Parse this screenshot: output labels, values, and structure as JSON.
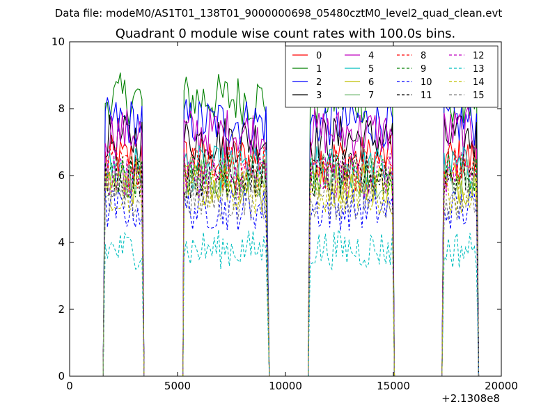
{
  "suptitle": "Data file: modeM0/AS1T01_138T01_9000000698_05480cztM0_level2_quad_clean.evt",
  "chart_data": {
    "type": "line",
    "title": "Quadrant 0 module wise count rates with 100.0s bins.",
    "xlabel": "",
    "ylabel": "",
    "xlim": [
      0,
      20000
    ],
    "ylim": [
      0,
      10
    ],
    "x_offset_label": "+2.1308e8",
    "xticks": [
      0,
      5000,
      10000,
      15000,
      20000
    ],
    "xtick_labels": [
      "0",
      "5000",
      "10000",
      "15000",
      "20000"
    ],
    "yticks": [
      0,
      2,
      4,
      6,
      8,
      10
    ],
    "ytick_labels": [
      "0",
      "2",
      "4",
      "6",
      "8",
      "10"
    ],
    "grid": false,
    "legend_position": "top-right",
    "legend_columns": 4,
    "segments": [
      {
        "start": 1650,
        "end": 3350
      },
      {
        "start": 5300,
        "end": 9150
      },
      {
        "start": 11150,
        "end": 14950
      },
      {
        "start": 17350,
        "end": 18850
      }
    ],
    "bin_seconds": 100,
    "series": [
      {
        "name": "0",
        "color": "#ff0000",
        "dash": "solid",
        "mean": 6.5
      },
      {
        "name": "1",
        "color": "#008000",
        "dash": "solid",
        "mean": 8.3
      },
      {
        "name": "2",
        "color": "#0000ff",
        "dash": "solid",
        "mean": 7.6
      },
      {
        "name": "3",
        "color": "#000000",
        "dash": "solid",
        "mean": 7.1
      },
      {
        "name": "4",
        "color": "#bf00bf",
        "dash": "solid",
        "mean": 7.3
      },
      {
        "name": "5",
        "color": "#00bfbf",
        "dash": "solid",
        "mean": 6.2
      },
      {
        "name": "6",
        "color": "#bfbf00",
        "dash": "solid",
        "mean": 5.8
      },
      {
        "name": "7",
        "color": "#7fbf7f",
        "dash": "solid",
        "mean": 6.0
      },
      {
        "name": "8",
        "color": "#ff0000",
        "dash": "dashed",
        "mean": 6.2
      },
      {
        "name": "9",
        "color": "#008000",
        "dash": "dashed",
        "mean": 6.0
      },
      {
        "name": "10",
        "color": "#0000ff",
        "dash": "dashed",
        "mean": 5.0
      },
      {
        "name": "11",
        "color": "#000000",
        "dash": "dashed",
        "mean": 6.0
      },
      {
        "name": "12",
        "color": "#bf00bf",
        "dash": "dashed",
        "mean": 6.0
      },
      {
        "name": "13",
        "color": "#00bfbf",
        "dash": "dashed",
        "mean": 3.8
      },
      {
        "name": "14",
        "color": "#bfbf00",
        "dash": "dashed",
        "mean": 5.5
      },
      {
        "name": "15",
        "color": "#7f7f7f",
        "dash": "dashed",
        "mean": 5.3
      }
    ]
  }
}
